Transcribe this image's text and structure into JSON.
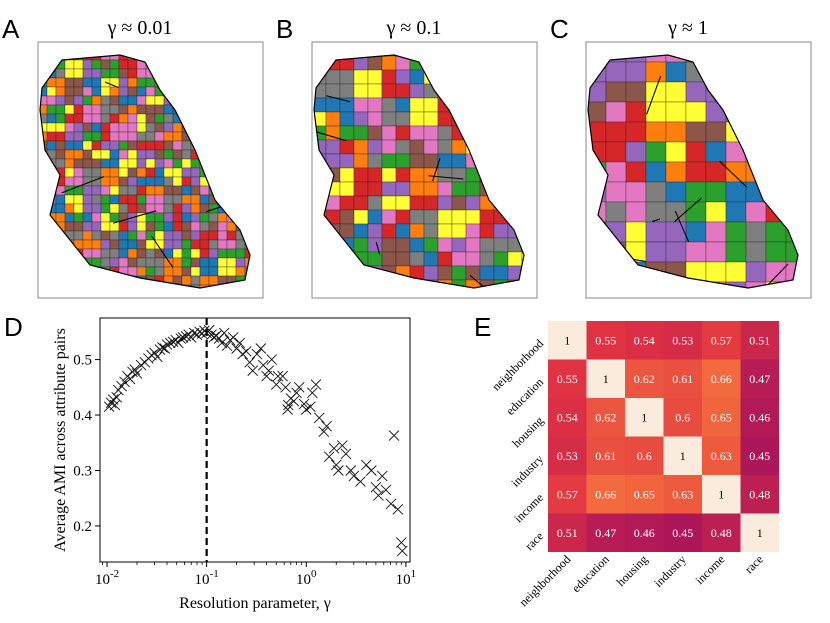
{
  "panels": {
    "A": {
      "letter": "A",
      "title": "γ ≈ 0.01"
    },
    "B": {
      "letter": "B",
      "title": "γ ≈ 0.1"
    },
    "C": {
      "letter": "C",
      "title": "γ ≈ 1"
    },
    "D": {
      "letter": "D"
    },
    "E": {
      "letter": "E"
    }
  },
  "map_palette": {
    "A": [
      "#2ca02c",
      "#ff7f0e",
      "#9467bd",
      "#7f7f7f",
      "#ffff33",
      "#e377c2",
      "#1f77b4",
      "#d62728",
      "#8c564b"
    ],
    "B": [
      "#7f7f7f",
      "#ff7f0e",
      "#e377c2",
      "#9467bd",
      "#1f77b4",
      "#d62728",
      "#8c564b",
      "#ffff33",
      "#2ca02c"
    ],
    "C": [
      "#8c564b",
      "#7f7f7f",
      "#ff7f0e",
      "#e377c2",
      "#d62728",
      "#9467bd",
      "#1f77b4",
      "#ffff33",
      "#2ca02c"
    ]
  },
  "chart_data": [
    {
      "type": "scatter",
      "panel": "D",
      "xlabel": "Resolution parameter, γ",
      "ylabel": "Average AMI across attribute pairs",
      "xscale": "log",
      "xlim": [
        0.0085,
        11
      ],
      "ylim": [
        0.135,
        0.575
      ],
      "xticks": [
        {
          "value": 0.01,
          "label": "10-2"
        },
        {
          "value": 0.1,
          "label": "10-1"
        },
        {
          "value": 1,
          "label": "100"
        },
        {
          "value": 10,
          "label": "101"
        }
      ],
      "yticks": [
        0.2,
        0.3,
        0.4,
        0.5
      ],
      "vline": 0.1,
      "marker": "x",
      "points": [
        [
          0.0105,
          0.415
        ],
        [
          0.011,
          0.422
        ],
        [
          0.0115,
          0.428
        ],
        [
          0.012,
          0.418
        ],
        [
          0.0125,
          0.432
        ],
        [
          0.013,
          0.445
        ],
        [
          0.014,
          0.452
        ],
        [
          0.015,
          0.46
        ],
        [
          0.016,
          0.47
        ],
        [
          0.017,
          0.465
        ],
        [
          0.018,
          0.478
        ],
        [
          0.019,
          0.482
        ],
        [
          0.02,
          0.475
        ],
        [
          0.022,
          0.49
        ],
        [
          0.024,
          0.495
        ],
        [
          0.026,
          0.502
        ],
        [
          0.028,
          0.508
        ],
        [
          0.03,
          0.512
        ],
        [
          0.032,
          0.505
        ],
        [
          0.034,
          0.518
        ],
        [
          0.036,
          0.522
        ],
        [
          0.038,
          0.52
        ],
        [
          0.04,
          0.527
        ],
        [
          0.043,
          0.53
        ],
        [
          0.046,
          0.532
        ],
        [
          0.049,
          0.535
        ],
        [
          0.052,
          0.53
        ],
        [
          0.055,
          0.538
        ],
        [
          0.058,
          0.54
        ],
        [
          0.062,
          0.542
        ],
        [
          0.066,
          0.545
        ],
        [
          0.07,
          0.54
        ],
        [
          0.075,
          0.548
        ],
        [
          0.08,
          0.545
        ],
        [
          0.085,
          0.55
        ],
        [
          0.09,
          0.547
        ],
        [
          0.095,
          0.552
        ],
        [
          0.1,
          0.548
        ],
        [
          0.106,
          0.553
        ],
        [
          0.112,
          0.545
        ],
        [
          0.118,
          0.54
        ],
        [
          0.125,
          0.543
        ],
        [
          0.133,
          0.538
        ],
        [
          0.142,
          0.53
        ],
        [
          0.15,
          0.548
        ],
        [
          0.16,
          0.525
        ],
        [
          0.172,
          0.535
        ],
        [
          0.185,
          0.54
        ],
        [
          0.2,
          0.52
        ],
        [
          0.215,
          0.53
        ],
        [
          0.23,
          0.51
        ],
        [
          0.25,
          0.515
        ],
        [
          0.27,
          0.495
        ],
        [
          0.29,
          0.48
        ],
        [
          0.32,
          0.51
        ],
        [
          0.35,
          0.52
        ],
        [
          0.37,
          0.49
        ],
        [
          0.4,
          0.47
        ],
        [
          0.42,
          0.48
        ],
        [
          0.45,
          0.5
        ],
        [
          0.5,
          0.455
        ],
        [
          0.52,
          0.47
        ],
        [
          0.58,
          0.47
        ],
        [
          0.62,
          0.45
        ],
        [
          0.65,
          0.41
        ],
        [
          0.66,
          0.418
        ],
        [
          0.7,
          0.43
        ],
        [
          0.75,
          0.425
        ],
        [
          0.8,
          0.44
        ],
        [
          0.85,
          0.45
        ],
        [
          0.95,
          0.42
        ],
        [
          1.0,
          0.41
        ],
        [
          1.1,
          0.415
        ],
        [
          1.15,
          0.44
        ],
        [
          1.25,
          0.455
        ],
        [
          1.35,
          0.395
        ],
        [
          1.5,
          0.37
        ],
        [
          1.6,
          0.38
        ],
        [
          1.7,
          0.325
        ],
        [
          1.9,
          0.34
        ],
        [
          2.0,
          0.31
        ],
        [
          2.1,
          0.3
        ],
        [
          2.3,
          0.345
        ],
        [
          2.5,
          0.33
        ],
        [
          2.8,
          0.3
        ],
        [
          3.0,
          0.29
        ],
        [
          3.5,
          0.28
        ],
        [
          4.0,
          0.31
        ],
        [
          4.5,
          0.3
        ],
        [
          5.0,
          0.27
        ],
        [
          5.3,
          0.255
        ],
        [
          5.8,
          0.29
        ],
        [
          6.3,
          0.265
        ],
        [
          7.1,
          0.24
        ],
        [
          7.6,
          0.363
        ],
        [
          8.3,
          0.23
        ],
        [
          9.0,
          0.17
        ],
        [
          9.2,
          0.155
        ]
      ]
    },
    {
      "type": "heatmap",
      "panel": "E",
      "row_labels": [
        "neighborhood",
        "education",
        "housing",
        "industry",
        "income",
        "race"
      ],
      "col_labels": [
        "neighborhood",
        "education",
        "housing",
        "industry",
        "income",
        "race"
      ],
      "values": [
        [
          1,
          0.55,
          0.54,
          0.53,
          0.57,
          0.51
        ],
        [
          0.55,
          1,
          0.62,
          0.61,
          0.66,
          0.47
        ],
        [
          0.54,
          0.62,
          1,
          0.6,
          0.65,
          0.46
        ],
        [
          0.53,
          0.61,
          0.6,
          1,
          0.63,
          0.45
        ],
        [
          0.57,
          0.66,
          0.65,
          0.63,
          1,
          0.48
        ],
        [
          0.51,
          0.47,
          0.46,
          0.45,
          0.48,
          1
        ]
      ],
      "color_stops": {
        "low": "#ad1759",
        "mid": "#e13342",
        "high": "#f26a3d",
        "diagonal": "#faebdd"
      }
    }
  ]
}
